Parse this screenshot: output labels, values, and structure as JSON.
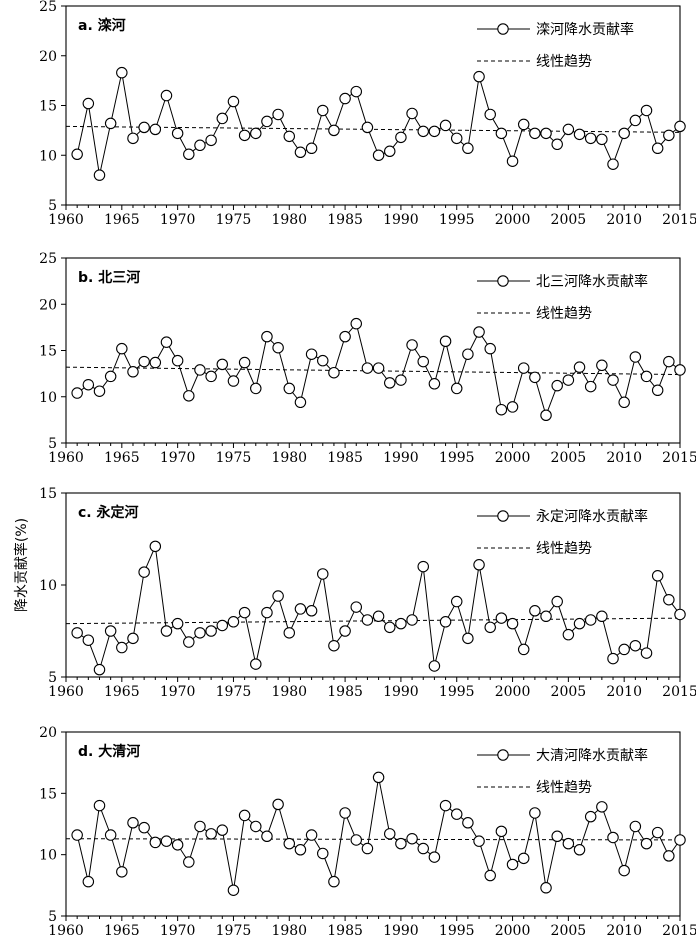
{
  "figure": {
    "ylabel": "降水贡献率(%)"
  },
  "chart_data": [
    {
      "type": "line",
      "panel_label": "a. 滦河",
      "x": [
        1961,
        1962,
        1963,
        1964,
        1965,
        1966,
        1967,
        1968,
        1969,
        1970,
        1971,
        1972,
        1973,
        1974,
        1975,
        1976,
        1977,
        1978,
        1979,
        1980,
        1981,
        1982,
        1983,
        1984,
        1985,
        1986,
        1987,
        1988,
        1989,
        1990,
        1991,
        1992,
        1993,
        1994,
        1995,
        1996,
        1997,
        1998,
        1999,
        2000,
        2001,
        2002,
        2003,
        2004,
        2005,
        2006,
        2007,
        2008,
        2009,
        2010,
        2011,
        2012,
        2013,
        2014,
        2015
      ],
      "series": [
        {
          "name": "滦河降水贡献率",
          "values": [
            10.1,
            15.2,
            8.0,
            13.2,
            18.3,
            11.7,
            12.8,
            12.6,
            16.0,
            12.2,
            10.1,
            11.0,
            11.5,
            13.7,
            15.4,
            12.0,
            12.2,
            13.4,
            14.1,
            11.9,
            10.3,
            10.7,
            14.5,
            12.5,
            15.7,
            16.4,
            12.8,
            10.0,
            10.4,
            11.8,
            14.2,
            12.4,
            12.4,
            13.0,
            11.7,
            10.7,
            17.9,
            14.1,
            12.2,
            9.4,
            13.1,
            12.2,
            12.2,
            11.1,
            12.6,
            12.1,
            11.7,
            11.6,
            9.1,
            12.2,
            13.5,
            14.5,
            10.7,
            12.0,
            12.9
          ]
        },
        {
          "name": "线性趋势",
          "trend": [
            12.9,
            12.3
          ]
        }
      ],
      "xlim": [
        1960,
        2015
      ],
      "ylim": [
        5,
        25
      ],
      "xticks": [
        1960,
        1965,
        1970,
        1975,
        1980,
        1985,
        1990,
        1995,
        2000,
        2005,
        2010,
        2015
      ],
      "yticks": [
        5,
        10,
        15,
        20,
        25
      ],
      "legend": "top-right"
    },
    {
      "type": "line",
      "panel_label": "b. 北三河",
      "x": [
        1961,
        1962,
        1963,
        1964,
        1965,
        1966,
        1967,
        1968,
        1969,
        1970,
        1971,
        1972,
        1973,
        1974,
        1975,
        1976,
        1977,
        1978,
        1979,
        1980,
        1981,
        1982,
        1983,
        1984,
        1985,
        1986,
        1987,
        1988,
        1989,
        1990,
        1991,
        1992,
        1993,
        1994,
        1995,
        1996,
        1997,
        1998,
        1999,
        2000,
        2001,
        2002,
        2003,
        2004,
        2005,
        2006,
        2007,
        2008,
        2009,
        2010,
        2011,
        2012,
        2013,
        2014,
        2015
      ],
      "series": [
        {
          "name": "北三河降水贡献率",
          "values": [
            10.4,
            11.3,
            10.6,
            12.2,
            15.2,
            12.7,
            13.8,
            13.7,
            15.9,
            13.9,
            10.1,
            12.9,
            12.2,
            13.5,
            11.7,
            13.7,
            10.9,
            16.5,
            15.3,
            10.9,
            9.4,
            14.6,
            13.9,
            12.6,
            16.5,
            17.9,
            13.1,
            13.1,
            11.5,
            11.8,
            15.6,
            13.8,
            11.4,
            16.0,
            10.9,
            14.6,
            17.0,
            15.2,
            8.6,
            8.9,
            13.1,
            12.1,
            8.0,
            11.2,
            11.8,
            13.2,
            11.1,
            13.4,
            11.8,
            9.4,
            14.3,
            12.2,
            10.7,
            13.8,
            12.9
          ]
        },
        {
          "name": "线性趋势",
          "trend": [
            13.2,
            12.4
          ]
        }
      ],
      "xlim": [
        1960,
        2015
      ],
      "ylim": [
        5,
        25
      ],
      "xticks": [
        1960,
        1965,
        1970,
        1975,
        1980,
        1985,
        1990,
        1995,
        2000,
        2005,
        2010,
        2015
      ],
      "yticks": [
        5,
        10,
        15,
        20,
        25
      ],
      "legend": "top-right"
    },
    {
      "type": "line",
      "panel_label": "c. 永定河",
      "x": [
        1961,
        1962,
        1963,
        1964,
        1965,
        1966,
        1967,
        1968,
        1969,
        1970,
        1971,
        1972,
        1973,
        1974,
        1975,
        1976,
        1977,
        1978,
        1979,
        1980,
        1981,
        1982,
        1983,
        1984,
        1985,
        1986,
        1987,
        1988,
        1989,
        1990,
        1991,
        1992,
        1993,
        1994,
        1995,
        1996,
        1997,
        1998,
        1999,
        2000,
        2001,
        2002,
        2003,
        2004,
        2005,
        2006,
        2007,
        2008,
        2009,
        2010,
        2011,
        2012,
        2013,
        2014,
        2015
      ],
      "series": [
        {
          "name": "永定河降水贡献率",
          "values": [
            7.4,
            7.0,
            5.4,
            7.5,
            6.6,
            7.1,
            10.7,
            12.1,
            7.5,
            7.9,
            6.9,
            7.4,
            7.5,
            7.8,
            8.0,
            8.5,
            5.7,
            8.5,
            9.4,
            7.4,
            8.7,
            8.6,
            10.6,
            6.7,
            7.5,
            8.8,
            8.1,
            8.3,
            7.7,
            7.9,
            8.1,
            11.0,
            5.6,
            8.0,
            9.1,
            7.1,
            11.1,
            7.7,
            8.2,
            7.9,
            6.5,
            8.6,
            8.3,
            9.1,
            7.3,
            7.9,
            8.1,
            8.3,
            6.0,
            6.5,
            6.7,
            6.3,
            10.5,
            9.2,
            8.4
          ]
        },
        {
          "name": "线性趋势",
          "trend": [
            7.9,
            8.2
          ]
        }
      ],
      "xlim": [
        1960,
        2015
      ],
      "ylim": [
        5,
        15
      ],
      "xticks": [
        1960,
        1965,
        1970,
        1975,
        1980,
        1985,
        1990,
        1995,
        2000,
        2005,
        2010,
        2015
      ],
      "yticks": [
        5,
        10,
        15
      ],
      "legend": "top-right"
    },
    {
      "type": "line",
      "panel_label": "d. 大清河",
      "x": [
        1961,
        1962,
        1963,
        1964,
        1965,
        1966,
        1967,
        1968,
        1969,
        1970,
        1971,
        1972,
        1973,
        1974,
        1975,
        1976,
        1977,
        1978,
        1979,
        1980,
        1981,
        1982,
        1983,
        1984,
        1985,
        1986,
        1987,
        1988,
        1989,
        1990,
        1991,
        1992,
        1993,
        1994,
        1995,
        1996,
        1997,
        1998,
        1999,
        2000,
        2001,
        2002,
        2003,
        2004,
        2005,
        2006,
        2007,
        2008,
        2009,
        2010,
        2011,
        2012,
        2013,
        2014,
        2015
      ],
      "series": [
        {
          "name": "大清河降水贡献率",
          "values": [
            11.6,
            7.8,
            14.0,
            11.6,
            8.6,
            12.6,
            12.2,
            11.0,
            11.1,
            10.8,
            9.4,
            12.3,
            11.7,
            12.0,
            7.1,
            13.2,
            12.3,
            11.5,
            14.1,
            10.9,
            10.4,
            11.6,
            10.1,
            7.8,
            13.4,
            11.2,
            10.5,
            16.3,
            11.7,
            10.9,
            11.3,
            10.5,
            9.8,
            14.0,
            13.3,
            12.6,
            11.1,
            8.3,
            11.9,
            9.2,
            9.7,
            13.4,
            7.3,
            11.5,
            10.9,
            10.4,
            13.1,
            13.9,
            11.4,
            8.7,
            12.3,
            10.9,
            11.8,
            9.9,
            11.2
          ]
        },
        {
          "name": "线性趋势",
          "trend": [
            11.3,
            11.2
          ]
        }
      ],
      "xlim": [
        1960,
        2015
      ],
      "ylim": [
        5,
        20
      ],
      "xticks": [
        1960,
        1965,
        1970,
        1975,
        1980,
        1985,
        1990,
        1995,
        2000,
        2005,
        2010,
        2015
      ],
      "yticks": [
        5,
        10,
        15,
        20
      ],
      "legend": "top-right"
    }
  ]
}
